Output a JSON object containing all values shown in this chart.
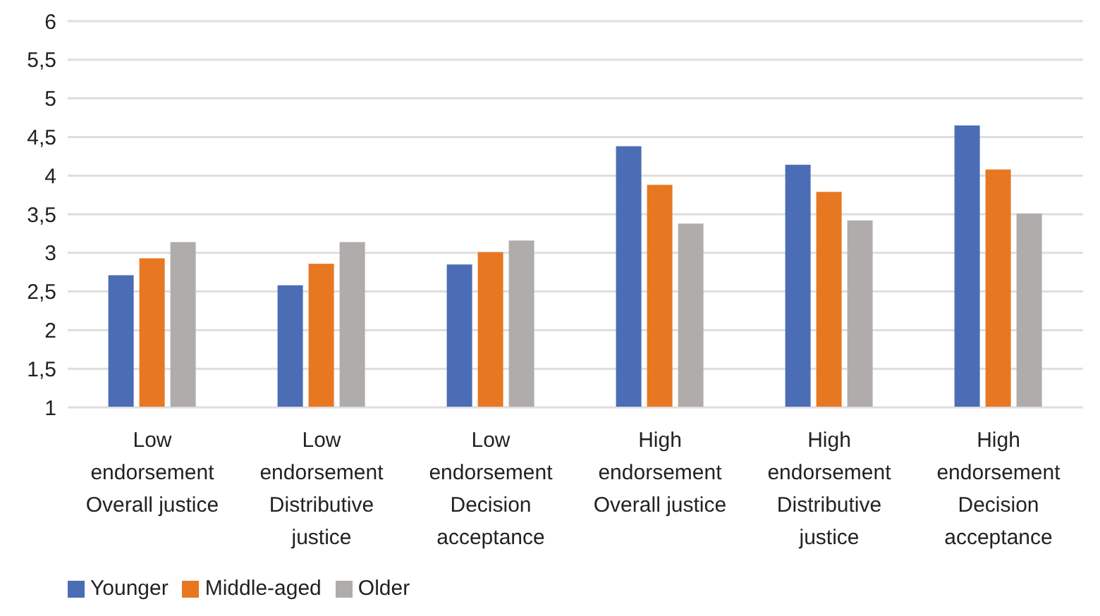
{
  "chart_data": {
    "type": "bar",
    "categories": [
      "Low\nendorsement\nOverall justice",
      "Low\nendorsement\nDistributive\njustice",
      "Low\nendorsement\nDecision\nacceptance",
      "High\nendorsement\nOverall justice",
      "High\nendorsement\nDistributive\njustice",
      "High\nendorsement\nDecision\nacceptance"
    ],
    "series": [
      {
        "name": "Younger",
        "color": "#4a6db5",
        "values": [
          2.71,
          2.58,
          2.85,
          4.38,
          4.14,
          4.65
        ]
      },
      {
        "name": "Middle-aged",
        "color": "#e87722",
        "values": [
          2.93,
          2.86,
          3.01,
          3.88,
          3.79,
          4.08
        ]
      },
      {
        "name": "Older",
        "color": "#afacab",
        "values": [
          3.14,
          3.14,
          3.16,
          3.38,
          3.42,
          3.51
        ]
      }
    ],
    "ylim": [
      1,
      6
    ],
    "yticks": [
      1,
      {
        "value": 1.5,
        "label": "1,5"
      },
      2,
      {
        "value": 2.5,
        "label": "2,5"
      },
      3,
      {
        "value": 3.5,
        "label": "3,5"
      },
      4,
      {
        "value": 4.5,
        "label": "4,5"
      },
      5,
      {
        "value": 5.5,
        "label": "5,5"
      },
      6
    ],
    "grid": "y",
    "legend": "bottom left"
  }
}
